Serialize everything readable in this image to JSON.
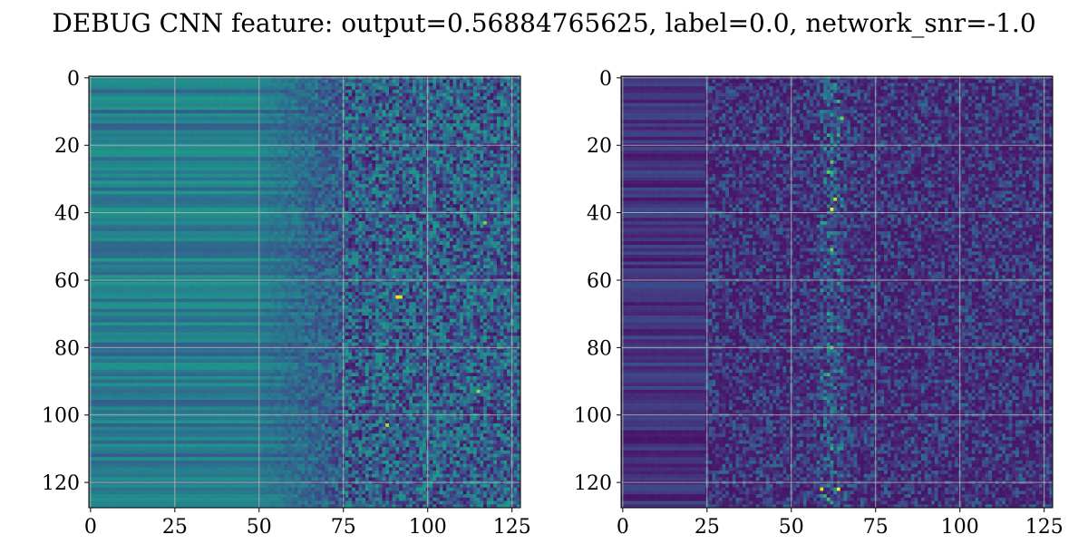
{
  "figure": {
    "title": "DEBUG CNN feature: output=0.56884765625, label=0.0, network_snr=-1.0"
  },
  "chart_data": [
    {
      "type": "heatmap",
      "colormap": "viridis",
      "rows": 128,
      "cols": 128,
      "grid": true,
      "xlim": [
        -0.5,
        127.5
      ],
      "ylim": [
        127.5,
        -0.5
      ],
      "xticks": [
        0,
        25,
        50,
        75,
        100,
        125
      ],
      "xtick_labels": [
        "0",
        "25",
        "50",
        "75",
        "100",
        "125"
      ],
      "yticks": [
        0,
        20,
        40,
        60,
        80,
        100,
        120
      ],
      "ytick_labels": [
        "0",
        "20",
        "40",
        "60",
        "80",
        "100",
        "120"
      ],
      "pattern": {
        "smooth_cols_end": 48,
        "transition_cols": [
          48,
          75
        ],
        "noisy_cols_start": 75,
        "base_level": 0.28,
        "noise_level": 0.45,
        "hot_spots": [
          {
            "col": 91,
            "row": 65,
            "value": 1.0
          },
          {
            "col": 92,
            "row": 65,
            "value": 0.95
          },
          {
            "col": 88,
            "row": 103,
            "value": 0.9
          },
          {
            "col": 115,
            "row": 93,
            "value": 0.85
          },
          {
            "col": 117,
            "row": 43,
            "value": 0.8
          }
        ]
      }
    },
    {
      "type": "heatmap",
      "colormap": "viridis",
      "rows": 128,
      "cols": 128,
      "grid": true,
      "xlim": [
        -0.5,
        127.5
      ],
      "ylim": [
        127.5,
        -0.5
      ],
      "xticks": [
        0,
        25,
        50,
        75,
        100,
        125
      ],
      "xtick_labels": [
        "0",
        "25",
        "50",
        "75",
        "100",
        "125"
      ],
      "yticks": [
        0,
        20,
        40,
        60,
        80,
        100,
        120
      ],
      "ytick_labels": [
        "0",
        "20",
        "40",
        "60",
        "80",
        "100",
        "120"
      ],
      "pattern": {
        "smooth_cols_end": 25,
        "base_level": 0.06,
        "noise_level": 0.22,
        "band_center_col": 62,
        "band_width": 6,
        "hot_spots": [
          {
            "col": 62,
            "row": 39,
            "value": 1.0
          },
          {
            "col": 63,
            "row": 36,
            "value": 0.9
          },
          {
            "col": 59,
            "row": 122,
            "value": 0.95
          },
          {
            "col": 64,
            "row": 122,
            "value": 1.0
          },
          {
            "col": 65,
            "row": 12,
            "value": 0.8
          },
          {
            "col": 62,
            "row": 51,
            "value": 0.8
          }
        ]
      }
    }
  ]
}
